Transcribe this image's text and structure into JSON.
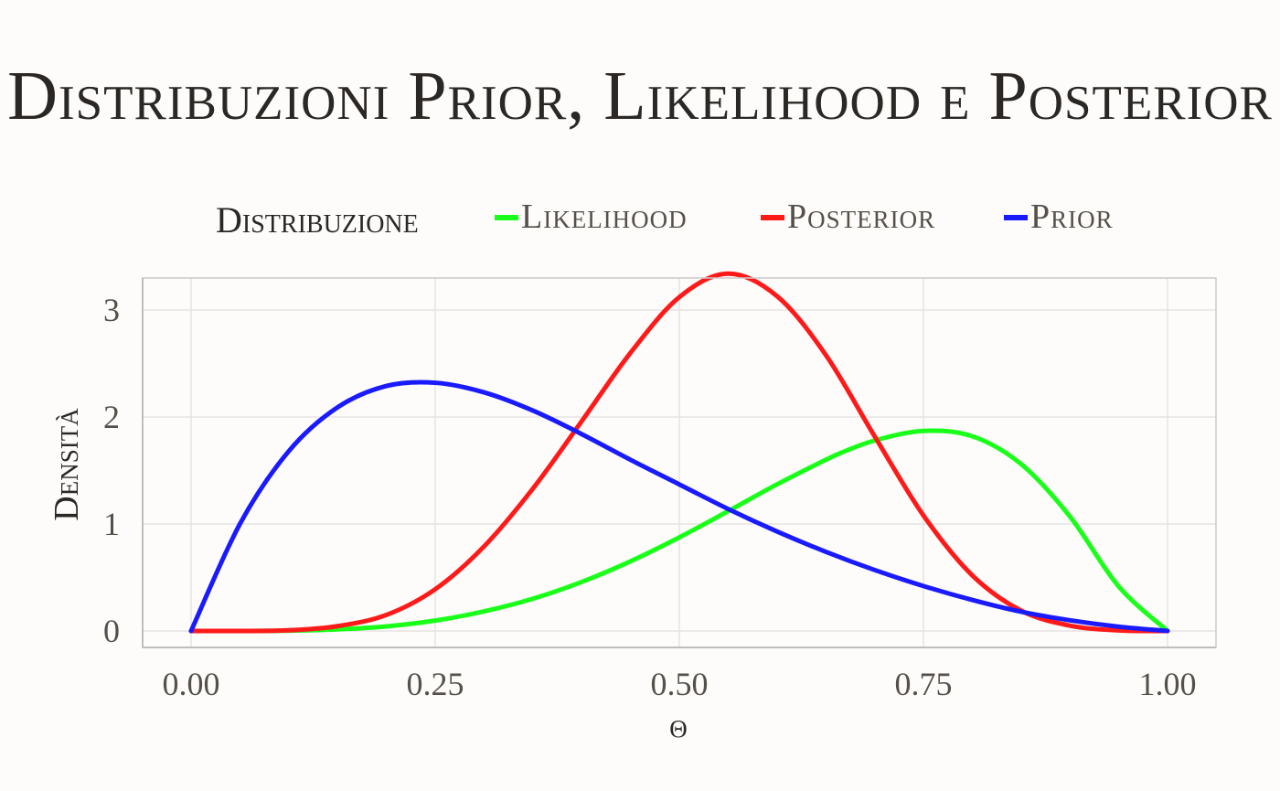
{
  "chart_data": {
    "type": "line",
    "title": "Distribuzioni Prior, Likelihood e Posterior",
    "xlabel": "θ",
    "ylabel": "Densità",
    "xlim": [
      -0.1,
      1.1
    ],
    "ylim": [
      -0.15,
      3.3
    ],
    "xticks": [
      0,
      0.25,
      0.5,
      0.75,
      1
    ],
    "xtick_labels": [
      "0.00",
      "0.25",
      "0.50",
      "0.75",
      "1.00"
    ],
    "yticks": [
      0,
      1,
      2,
      3
    ],
    "ytick_labels": [
      "0",
      "1",
      "2",
      "3"
    ],
    "grid": true,
    "legend": {
      "title": "Distribuzione",
      "position": "top",
      "entries": [
        "Likelihood",
        "Posterior",
        "Prior"
      ]
    },
    "series": [
      {
        "name": "Likelihood",
        "color": "#1aff1a",
        "x": [
          0,
          0.05,
          0.1,
          0.15,
          0.2,
          0.25,
          0.3,
          0.35,
          0.4,
          0.45,
          0.5,
          0.55,
          0.6,
          0.65,
          0.667,
          0.7,
          0.75,
          0.8,
          0.85,
          0.9,
          0.95,
          1
        ],
        "y": [
          0,
          0.0,
          0.003,
          0.015,
          0.043,
          0.097,
          0.183,
          0.301,
          0.458,
          0.651,
          0.875,
          1.12,
          1.37,
          1.6,
          1.67,
          1.78,
          1.87,
          1.82,
          1.56,
          1.07,
          0.416,
          0
        ]
      },
      {
        "name": "Posterior",
        "color": "#ff1a1a",
        "x": [
          0,
          0.05,
          0.1,
          0.15,
          0.2,
          0.25,
          0.3,
          0.35,
          0.4,
          0.45,
          0.5,
          0.55,
          0.6,
          0.65,
          0.7,
          0.75,
          0.8,
          0.85,
          0.9,
          0.95,
          1
        ],
        "y": [
          0,
          0.0,
          0.006,
          0.045,
          0.15,
          0.39,
          0.79,
          1.33,
          1.96,
          2.6,
          3.12,
          3.34,
          3.13,
          2.58,
          1.82,
          1.08,
          0.52,
          0.19,
          0.05,
          0.005,
          0
        ]
      },
      {
        "name": "Prior",
        "color": "#1a1aff",
        "x": [
          0,
          0.05,
          0.1,
          0.15,
          0.2,
          0.25,
          0.3,
          0.35,
          0.4,
          0.45,
          0.5,
          0.55,
          0.6,
          0.65,
          0.7,
          0.75,
          0.8,
          0.85,
          0.9,
          0.95,
          1
        ],
        "y": [
          0,
          1.0,
          1.68,
          2.09,
          2.29,
          2.32,
          2.23,
          2.06,
          1.84,
          1.6,
          1.37,
          1.14,
          0.93,
          0.74,
          0.57,
          0.42,
          0.29,
          0.18,
          0.1,
          0.04,
          0
        ]
      }
    ]
  }
}
